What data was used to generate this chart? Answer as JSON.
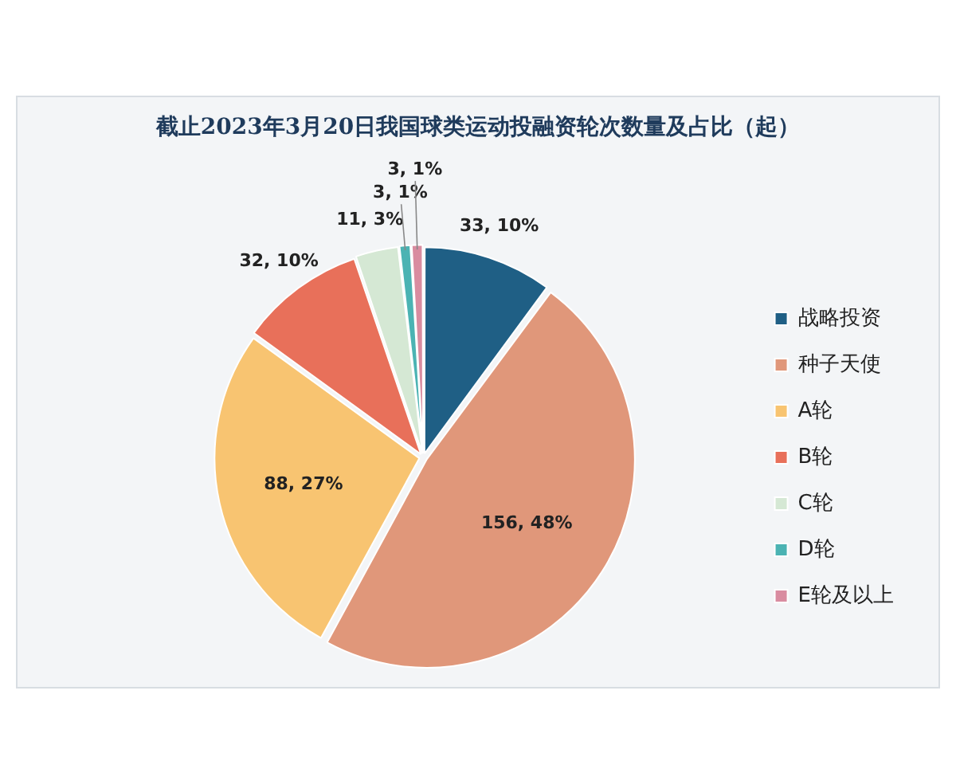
{
  "chart_data": {
    "type": "pie",
    "title": "截止2023年3月20日我国球类运动投融资轮次数量及占比（起）",
    "categories": [
      "战略投资",
      "种子天使",
      "A轮",
      "B轮",
      "C轮",
      "D轮",
      "E轮及以上"
    ],
    "values": [
      33,
      156,
      88,
      32,
      11,
      3,
      3
    ],
    "colors": [
      "#1f5f85",
      "#e0977a",
      "#f8c471",
      "#e8705a",
      "#d5e8d4",
      "#4bb3b3",
      "#d98ca0"
    ],
    "value_labels": [
      "33, 10%",
      "156, 48%",
      "88, 27%",
      "32, 10%",
      "11, 3%",
      "3, 1%",
      "3, 1%"
    ],
    "legend": "right"
  }
}
